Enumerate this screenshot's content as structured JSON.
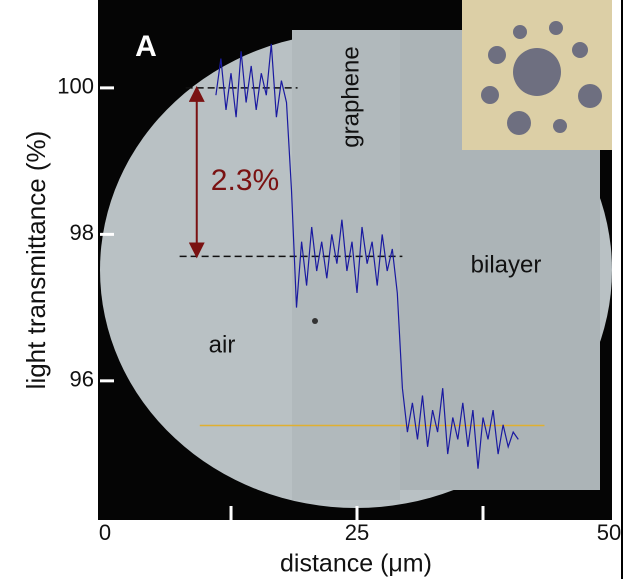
{
  "chart_data": {
    "type": "line",
    "title": "A",
    "xlabel": "distance (μm)",
    "ylabel": "light  transmittance  (%)",
    "annotations": [
      "graphene",
      "bilayer",
      "air",
      "2.3%"
    ],
    "x": [
      11,
      11.5,
      12,
      12.5,
      13,
      13.5,
      14,
      14.5,
      15,
      15.5,
      16,
      16.5,
      17,
      17.5,
      18,
      18.5,
      19,
      19.5,
      20,
      20.5,
      21,
      21.5,
      22,
      22.5,
      23,
      23.5,
      24,
      24.5,
      25,
      25.5,
      26,
      26.5,
      27,
      27.5,
      28,
      28.5,
      29,
      29.5,
      30,
      30.5,
      31,
      31.5,
      32,
      32.5,
      33,
      33.5,
      34,
      34.5,
      35,
      35.5,
      36,
      36.5,
      37,
      37.5,
      38,
      38.5,
      39,
      39.5,
      40,
      40.5,
      41
    ],
    "values": [
      99.9,
      100.4,
      99.7,
      100.2,
      99.6,
      100.5,
      99.8,
      100.3,
      99.7,
      100.2,
      99.9,
      100.6,
      99.6,
      100.1,
      99.8,
      98.6,
      97.0,
      97.9,
      97.3,
      98.1,
      97.5,
      97.9,
      97.4,
      98.0,
      97.6,
      98.2,
      97.5,
      97.9,
      97.2,
      98.1,
      97.6,
      97.9,
      97.3,
      98.0,
      97.5,
      97.8,
      97.2,
      95.9,
      95.3,
      95.7,
      95.2,
      95.8,
      95.1,
      95.6,
      95.3,
      95.9,
      95.0,
      95.5,
      95.2,
      95.7,
      95.1,
      95.6,
      94.8,
      95.5,
      95.2,
      95.6,
      95.0,
      95.4,
      95.1,
      95.3,
      95.2
    ],
    "color": "#1a1aa0",
    "xlim": [
      -0.5,
      50.3
    ],
    "ylim": [
      94.1,
      101.2
    ],
    "xticks": [
      0,
      25,
      50
    ],
    "xminor": [
      12.5,
      25,
      37.5
    ],
    "yticks": [
      96,
      98,
      100
    ],
    "reference_lines": [
      {
        "y": 100,
        "x": [
          8,
          19.1
        ],
        "color": "#111",
        "dashed": true
      },
      {
        "y": 97.7,
        "x": [
          7.4,
          29.5
        ],
        "color": "#111",
        "dashed": true
      },
      {
        "y": 95.39,
        "x": [
          9.4,
          43.6
        ],
        "color": "#e0b030",
        "dashed": false
      }
    ],
    "arrow": {
      "x": 9.1,
      "y": [
        100,
        97.7
      ],
      "color": "#7a1212"
    }
  }
}
